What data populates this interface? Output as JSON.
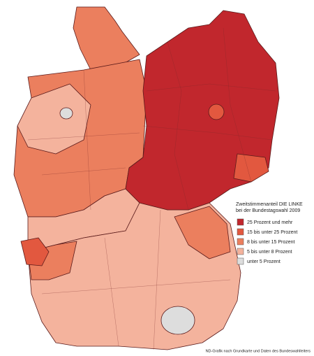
{
  "legend": {
    "title": [
      "Zweitstimmenanteil DIE LINKE",
      "bei der Bundestagswahl 2009"
    ],
    "items": [
      {
        "label": "25 Prozent und mehr",
        "color": "#c1272d"
      },
      {
        "label": "15 bis unter 25 Prozent",
        "color": "#e2583f"
      },
      {
        "label": "8 bis unter 15 Prozent",
        "color": "#eb7f5e"
      },
      {
        "label": "5 bis unter 8 Prozent",
        "color": "#f4b39d"
      },
      {
        "label": "unter 5 Prozent",
        "color": "#dddddd"
      }
    ]
  },
  "source": "ND-Grafik nach Grundkarte und Daten des Bundeswahlleiters"
}
